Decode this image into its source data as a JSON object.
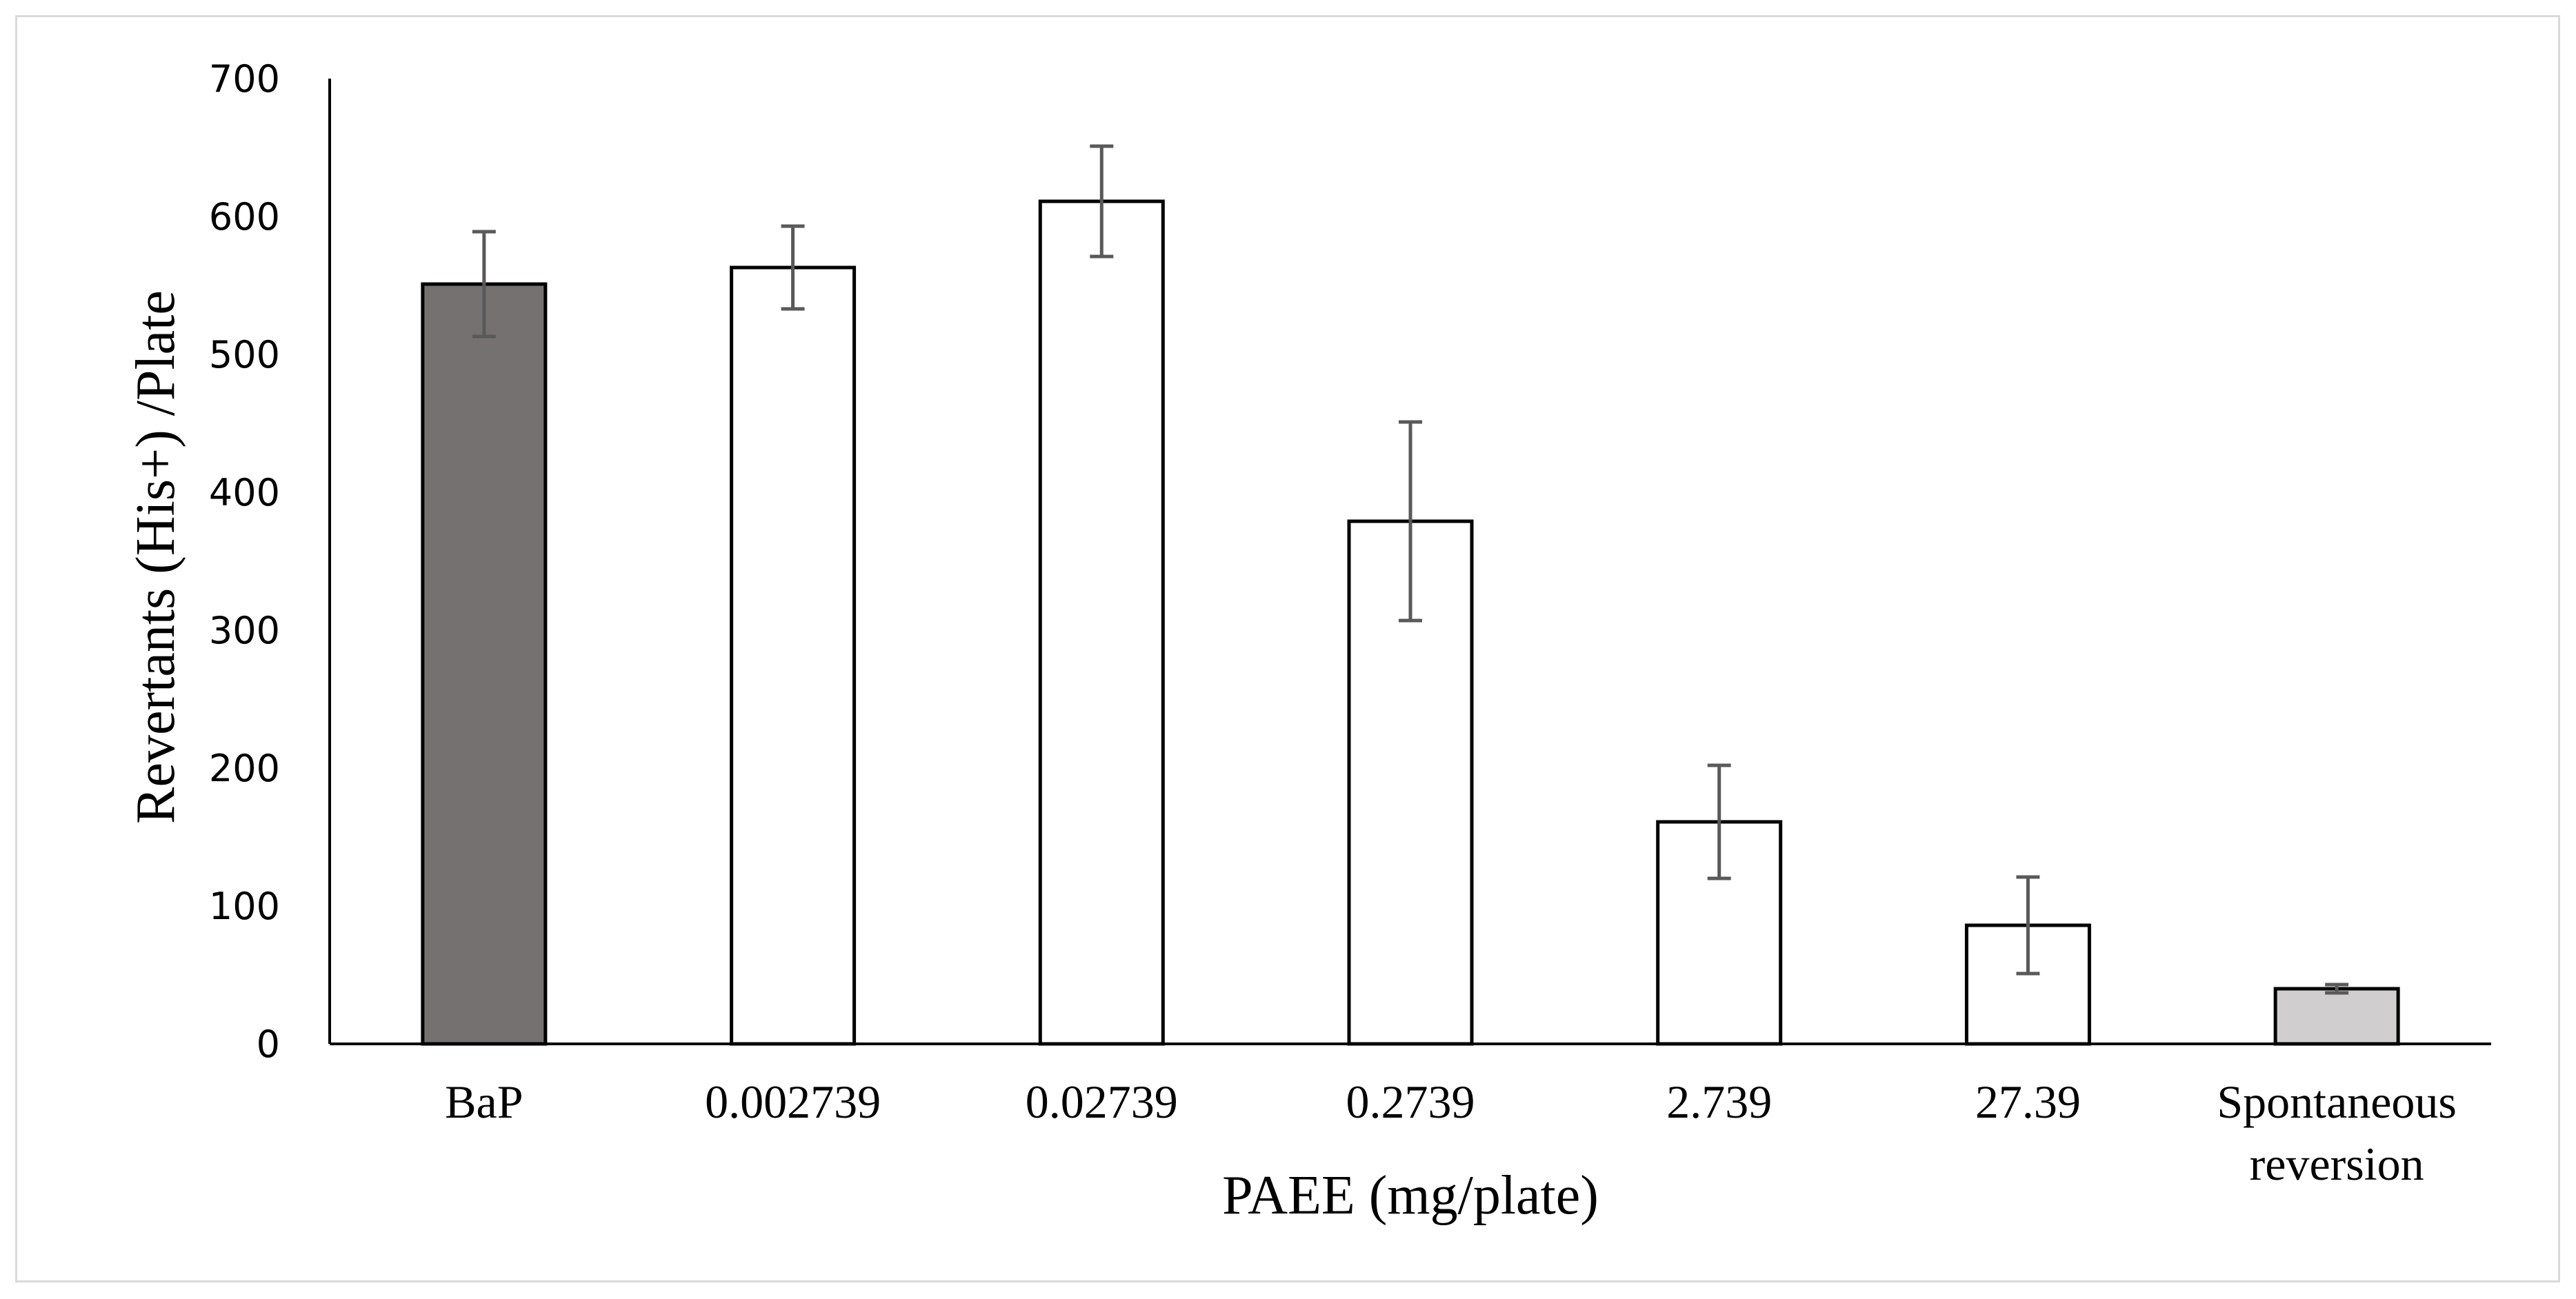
{
  "chart_data": {
    "type": "bar",
    "categories": [
      "BaP",
      "0.002739",
      "0.02739",
      "0.2739",
      "2.739",
      "27.39",
      "Spontaneous reversion"
    ],
    "category_lines": [
      [
        "BaP"
      ],
      [
        "0.002739"
      ],
      [
        "0.02739"
      ],
      [
        "0.2739"
      ],
      [
        "2.739"
      ],
      [
        "27.39"
      ],
      [
        "Spontaneous",
        "reversion"
      ]
    ],
    "values": [
      551,
      563,
      611,
      379,
      161,
      86,
      40
    ],
    "errors": [
      38,
      30,
      40,
      72,
      41,
      35,
      3
    ],
    "bar_colors": [
      "#767171",
      "#ffffff",
      "#ffffff",
      "#ffffff",
      "#ffffff",
      "#ffffff",
      "#d0cece"
    ],
    "bar_outline_color": "#000000",
    "error_bar_color": "#595959",
    "xlabel": "PAEE (mg/plate)",
    "ylabel": "Revertants (His+) /Plate",
    "ylim": [
      0,
      700
    ],
    "yticks": [
      0,
      100,
      200,
      300,
      400,
      500,
      600,
      700
    ],
    "grid": false,
    "legend": "none"
  }
}
